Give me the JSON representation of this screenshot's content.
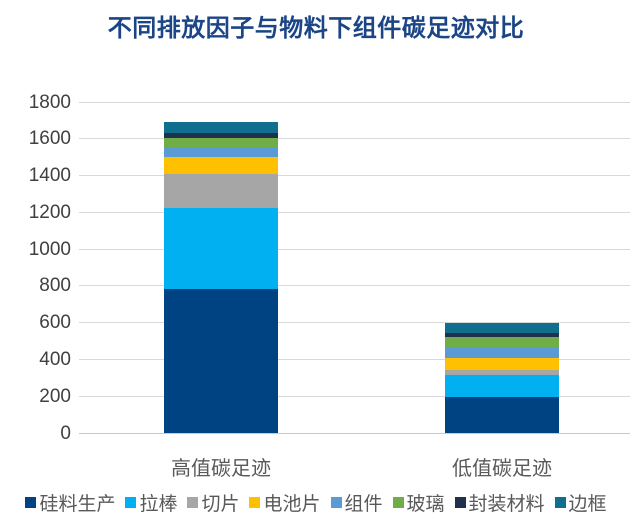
{
  "title": "不同排放因子与物料下组件碳足迹对比",
  "colors": {
    "title_text": "#1B4586",
    "axis_text": "#404040",
    "category_text": "#595959",
    "legend_text": "#595959",
    "gridline": "#D9D9D9",
    "axis_line": "#C9C9C9",
    "background": "#FFFFFF"
  },
  "chart_data": {
    "type": "bar",
    "stacked": true,
    "title": "不同排放因子与物料下组件碳足迹对比",
    "categories": [
      "高值碳足迹",
      "低值碳足迹"
    ],
    "series": [
      {
        "name": "硅料生产",
        "color": "#004383",
        "values": [
          785,
          195
        ]
      },
      {
        "name": "拉棒",
        "color": "#00B0F0",
        "values": [
          440,
          120
        ]
      },
      {
        "name": "切片",
        "color": "#A6A6A6",
        "values": [
          185,
          25
        ]
      },
      {
        "name": "电池片",
        "color": "#FFC000",
        "values": [
          90,
          70
        ]
      },
      {
        "name": "组件",
        "color": "#5B9BD5",
        "values": [
          50,
          50
        ]
      },
      {
        "name": "玻璃",
        "color": "#70AD47",
        "values": [
          55,
          60
        ]
      },
      {
        "name": "封装材料",
        "color": "#203150",
        "values": [
          25,
          25
        ]
      },
      {
        "name": "边框",
        "color": "#106F8E",
        "values": [
          60,
          55
        ]
      }
    ],
    "totals": [
      1690,
      600
    ],
    "xlabel": "",
    "ylabel": "",
    "ylim": [
      0,
      1800
    ],
    "ytick_step": 200,
    "yticks": [
      "0",
      "200",
      "400",
      "600",
      "800",
      "1000",
      "1200",
      "1400",
      "1600",
      "1800"
    ],
    "grid": true,
    "legend_position": "bottom"
  }
}
